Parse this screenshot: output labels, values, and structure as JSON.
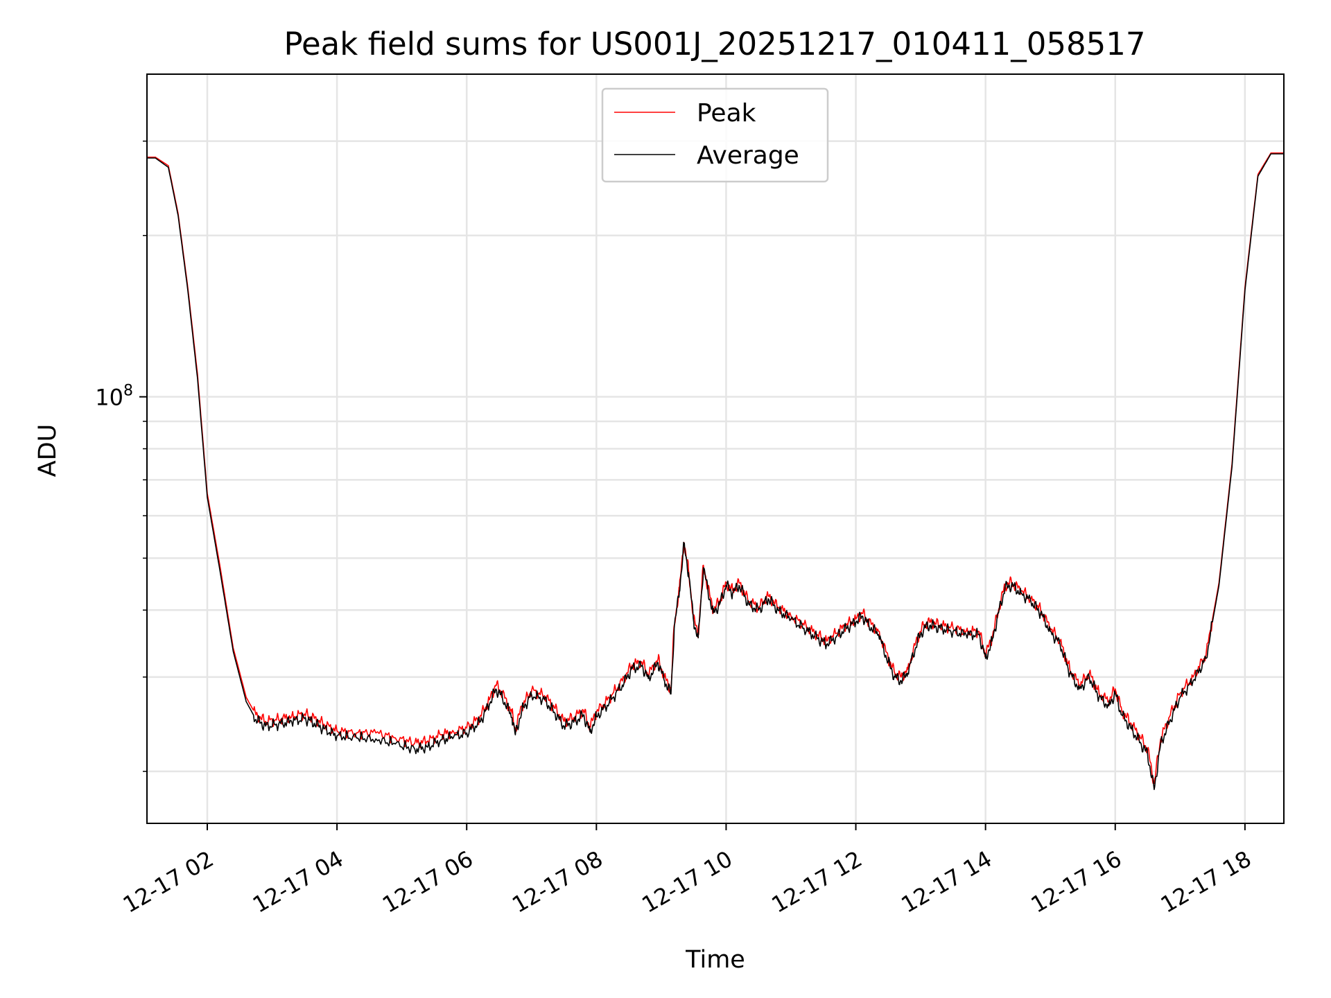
{
  "chart_data": {
    "type": "line",
    "title": "Peak field sums for US001J_20251217_010411_058517",
    "xlabel": "Time",
    "ylabel": "ADU",
    "yscale": "log",
    "xlim": [
      1.07,
      18.6
    ],
    "ylim": [
      16000000,
      400000000
    ],
    "grid": true,
    "legend_position": "top-center",
    "x_ticks": [
      {
        "value": 2,
        "label": "12-17 02"
      },
      {
        "value": 4,
        "label": "12-17 04"
      },
      {
        "value": 6,
        "label": "12-17 06"
      },
      {
        "value": 8,
        "label": "12-17 08"
      },
      {
        "value": 10,
        "label": "12-17 10"
      },
      {
        "value": 12,
        "label": "12-17 12"
      },
      {
        "value": 14,
        "label": "12-17 14"
      },
      {
        "value": 16,
        "label": "12-17 16"
      },
      {
        "value": 18,
        "label": "12-17 18"
      }
    ],
    "y_major_ticks": [
      {
        "value": 100000000,
        "base": "10",
        "exp": "8"
      }
    ],
    "y_minor_ticks": [
      20000000,
      30000000,
      40000000,
      50000000,
      60000000,
      70000000,
      80000000,
      90000000,
      200000000,
      300000000
    ],
    "x_unit": "hours since 2025-12-17 00:00",
    "series": [
      {
        "name": "Peak",
        "color": "#ff0000",
        "x": [
          1.07,
          1.2,
          1.4,
          1.55,
          1.7,
          1.85,
          2.0,
          2.2,
          2.4,
          2.6,
          2.75,
          2.9,
          3.1,
          3.3,
          3.5,
          3.65,
          3.8,
          4.0,
          4.3,
          4.6,
          4.9,
          5.2,
          5.4,
          5.6,
          5.8,
          6.0,
          6.2,
          6.35,
          6.45,
          6.55,
          6.7,
          6.75,
          6.85,
          7.0,
          7.2,
          7.35,
          7.5,
          7.65,
          7.8,
          7.9,
          8.0,
          8.2,
          8.4,
          8.55,
          8.7,
          8.8,
          8.95,
          9.05,
          9.15,
          9.2,
          9.28,
          9.35,
          9.42,
          9.5,
          9.57,
          9.65,
          9.72,
          9.8,
          9.9,
          10.0,
          10.1,
          10.2,
          10.35,
          10.5,
          10.65,
          10.8,
          11.0,
          11.2,
          11.4,
          11.55,
          11.7,
          11.85,
          12.0,
          12.1,
          12.2,
          12.35,
          12.5,
          12.6,
          12.7,
          12.8,
          12.95,
          13.05,
          13.15,
          13.3,
          13.5,
          13.7,
          13.9,
          14.0,
          14.1,
          14.2,
          14.3,
          14.4,
          14.55,
          14.7,
          14.85,
          15.0,
          15.15,
          15.3,
          15.45,
          15.6,
          15.75,
          15.9,
          16.0,
          16.1,
          16.25,
          16.4,
          16.5,
          16.6,
          16.7,
          16.85,
          17.0,
          17.2,
          17.4,
          17.6,
          17.8,
          18.0,
          18.2,
          18.4,
          18.6
        ],
        "y": [
          280000000,
          280000000,
          270000000,
          220000000,
          160000000,
          110000000,
          66000000,
          48000000,
          34000000,
          27500000,
          25500000,
          24800000,
          25000000,
          25300000,
          25600000,
          25100000,
          24500000,
          23800000,
          23600000,
          23600000,
          23100000,
          22600000,
          22800000,
          23400000,
          23700000,
          24100000,
          25200000,
          27200000,
          29000000,
          28000000,
          25700000,
          23900000,
          26500000,
          28300000,
          27700000,
          26300000,
          24800000,
          25200000,
          26000000,
          24200000,
          25800000,
          27400000,
          29500000,
          31600000,
          32000000,
          30300000,
          32400000,
          30000000,
          28400000,
          37500000,
          44000000,
          53500000,
          47500000,
          38500000,
          36000000,
          48500000,
          44000000,
          40000000,
          41500000,
          45000000,
          43500000,
          45000000,
          41500000,
          40500000,
          42500000,
          40500000,
          39000000,
          37500000,
          36000000,
          35000000,
          36200000,
          37500000,
          38500000,
          39500000,
          38000000,
          36500000,
          32500000,
          30500000,
          30000000,
          31000000,
          35500000,
          37500000,
          38000000,
          37500000,
          37000000,
          36500000,
          36500000,
          33000000,
          35500000,
          40000000,
          44500000,
          45000000,
          43500000,
          42000000,
          40000000,
          37000000,
          35000000,
          31000000,
          29000000,
          30500000,
          28000000,
          27000000,
          28500000,
          26000000,
          24500000,
          23000000,
          22000000,
          19000000,
          23000000,
          25500000,
          28000000,
          30000000,
          33000000,
          45000000,
          75000000,
          160000000,
          260000000,
          285000000,
          285000000
        ]
      },
      {
        "name": "Average",
        "color": "#000000",
        "x": [
          1.07,
          1.2,
          1.4,
          1.55,
          1.7,
          1.85,
          2.0,
          2.2,
          2.4,
          2.6,
          2.75,
          2.9,
          3.1,
          3.3,
          3.5,
          3.65,
          3.8,
          4.0,
          4.3,
          4.6,
          4.9,
          5.2,
          5.4,
          5.6,
          5.8,
          6.0,
          6.2,
          6.35,
          6.45,
          6.55,
          6.7,
          6.75,
          6.85,
          7.0,
          7.2,
          7.35,
          7.5,
          7.65,
          7.8,
          7.9,
          8.0,
          8.2,
          8.4,
          8.55,
          8.7,
          8.8,
          8.95,
          9.05,
          9.15,
          9.2,
          9.28,
          9.35,
          9.42,
          9.5,
          9.57,
          9.65,
          9.72,
          9.8,
          9.9,
          10.0,
          10.1,
          10.2,
          10.35,
          10.5,
          10.65,
          10.8,
          11.0,
          11.2,
          11.4,
          11.55,
          11.7,
          11.85,
          12.0,
          12.1,
          12.2,
          12.35,
          12.5,
          12.6,
          12.7,
          12.8,
          12.95,
          13.05,
          13.15,
          13.3,
          13.5,
          13.7,
          13.9,
          14.0,
          14.1,
          14.2,
          14.3,
          14.4,
          14.55,
          14.7,
          14.85,
          15.0,
          15.15,
          15.3,
          15.45,
          15.6,
          15.75,
          15.9,
          16.0,
          16.1,
          16.25,
          16.4,
          16.5,
          16.6,
          16.7,
          16.85,
          17.0,
          17.2,
          17.4,
          17.6,
          17.8,
          18.0,
          18.2,
          18.4,
          18.6
        ],
        "y": [
          279000000,
          279000000,
          268000000,
          218000000,
          158000000,
          108000000,
          65000000,
          47000000,
          33500000,
          27000000,
          25000000,
          24300000,
          24500000,
          24800000,
          25100000,
          24600000,
          24000000,
          23300000,
          23100000,
          23000000,
          22500000,
          22000000,
          22200000,
          22900000,
          23200000,
          23600000,
          24700000,
          26700000,
          28500000,
          27500000,
          25200000,
          23400000,
          26000000,
          27800000,
          27200000,
          25800000,
          24300000,
          24700000,
          25500000,
          23700000,
          25300000,
          26900000,
          29000000,
          31100000,
          31500000,
          29800000,
          31900000,
          29500000,
          27900000,
          37000000,
          43500000,
          53000000,
          47000000,
          38000000,
          35500000,
          48000000,
          43500000,
          39500000,
          41000000,
          44500000,
          43000000,
          44500000,
          41000000,
          40000000,
          42000000,
          40000000,
          38500000,
          37000000,
          35500000,
          34500000,
          35700000,
          37000000,
          38000000,
          39000000,
          37500000,
          36000000,
          32000000,
          30000000,
          29500000,
          30500000,
          35000000,
          37000000,
          37500000,
          37000000,
          36500000,
          36000000,
          36000000,
          32500000,
          35000000,
          39500000,
          44000000,
          44500000,
          43000000,
          41500000,
          39500000,
          36500000,
          34500000,
          30500000,
          28500000,
          30000000,
          27500000,
          26500000,
          28000000,
          25500000,
          24000000,
          22500000,
          21500000,
          18500000,
          22500000,
          25000000,
          27500000,
          29500000,
          32500000,
          44500000,
          74000000,
          158000000,
          258000000,
          284000000,
          284000000
        ]
      }
    ]
  }
}
